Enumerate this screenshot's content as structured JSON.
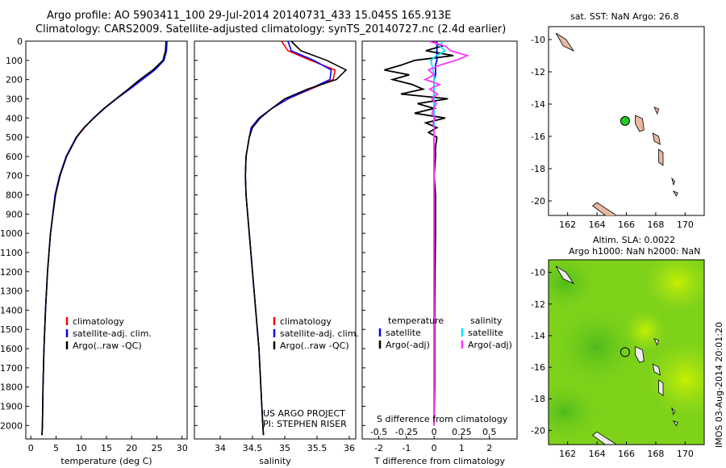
{
  "header": {
    "line1": "Argo profile: AO 5903411_100 29-Jul-2014 20140731_433 15.045S 165.913E",
    "line2": "Climatology: CARS2009. Satellite-adjusted climatology: synTS_20140727.nc (2.4d earlier)"
  },
  "map_top": {
    "title": "sat. SST: NaN Argo: 26.8"
  },
  "map_bottom": {
    "title1": "Altim. SLA: 0.0022",
    "title2": "Argo h1000: NaN h2000: NaN"
  },
  "side_stamp": "IMOS 03-Aug-2014 20:01:20",
  "panel2_note": {
    "line1": "US ARGO PROJECT",
    "line2": "PI: STEPHEN RISER"
  },
  "panel3_top_label": "S difference from climatology",
  "colors": {
    "climatology": "#ff0000",
    "satellite": "#0000ff",
    "argo": "#000000",
    "s_satellite": "#00e5ff",
    "s_argo": "#ff33ff",
    "argo_dot": "#22cc22",
    "land": "#e8b8a0"
  },
  "chart_data": [
    {
      "type": "line",
      "name": "temperature",
      "xlabel": "temperature (deg C)",
      "ylabel": "",
      "xlim": [
        -1,
        31
      ],
      "ylim": [
        2070,
        0
      ],
      "xticks": [
        "0",
        "5",
        "10",
        "15",
        "20",
        "25",
        "30"
      ],
      "yticks": [
        "0",
        "100",
        "200",
        "300",
        "400",
        "500",
        "600",
        "700",
        "800",
        "900",
        "1000",
        "1100",
        "1200",
        "1300",
        "1400",
        "1500",
        "1600",
        "1700",
        "1800",
        "1900",
        "2000"
      ],
      "legend": [
        "climatology",
        "satellite-adj. clim.",
        "Argo(..raw -QC)"
      ],
      "depth": [
        0,
        50,
        100,
        150,
        200,
        250,
        300,
        350,
        400,
        450,
        500,
        600,
        700,
        800,
        1000,
        1200,
        1400,
        1600,
        1800,
        2000,
        2050
      ],
      "series": [
        {
          "name": "climatology",
          "values": [
            26.9,
            26.8,
            26.3,
            24.5,
            22.0,
            19.5,
            17.0,
            14.5,
            12.5,
            10.5,
            9.0,
            7.0,
            5.7,
            4.8,
            3.9,
            3.3,
            2.9,
            2.6,
            2.4,
            2.3,
            2.2
          ]
        },
        {
          "name": "satellite-adj. clim.",
          "values": [
            27.0,
            26.9,
            26.4,
            24.6,
            22.1,
            19.6,
            17.0,
            14.6,
            12.5,
            10.6,
            9.0,
            7.0,
            5.7,
            4.8,
            3.9,
            3.3,
            2.9,
            2.6,
            2.4,
            2.3,
            2.2
          ]
        },
        {
          "name": "Argo(..raw -QC)",
          "values": [
            26.8,
            26.7,
            26.2,
            24.2,
            21.6,
            19.3,
            16.9,
            14.5,
            12.4,
            10.6,
            9.1,
            7.1,
            5.8,
            4.9,
            3.9,
            3.3,
            2.9,
            2.6,
            2.4,
            2.3,
            2.2
          ]
        }
      ]
    },
    {
      "type": "line",
      "name": "salinity",
      "xlabel": "salinity",
      "xlim": [
        33.6,
        36.1
      ],
      "xticks": [
        "34",
        "34.5",
        "35",
        "35.5",
        "36"
      ],
      "legend": [
        "climatology",
        "satellite-adj. clim.",
        "Argo(..raw -QC)"
      ],
      "depth": [
        0,
        50,
        100,
        150,
        200,
        250,
        300,
        350,
        400,
        450,
        500,
        600,
        700,
        800,
        1000,
        1200,
        1400,
        1600,
        1800,
        2000,
        2050
      ],
      "series": [
        {
          "name": "climatology",
          "values": [
            34.95,
            35.05,
            35.4,
            35.78,
            35.75,
            35.4,
            35.05,
            34.8,
            34.6,
            34.48,
            34.45,
            34.4,
            34.39,
            34.4,
            34.45,
            34.5,
            34.55,
            34.6,
            34.63,
            34.66,
            34.67
          ]
        },
        {
          "name": "satellite-adj. clim.",
          "values": [
            35.05,
            35.1,
            35.45,
            35.72,
            35.7,
            35.38,
            35.05,
            34.8,
            34.6,
            34.48,
            34.45,
            34.4,
            34.39,
            34.4,
            34.45,
            34.5,
            34.55,
            34.6,
            34.63,
            34.66,
            34.67
          ]
        },
        {
          "name": "Argo(..raw -QC)",
          "values": [
            35.1,
            35.25,
            35.65,
            35.95,
            35.8,
            35.35,
            35.0,
            34.8,
            34.62,
            34.5,
            34.45,
            34.4,
            34.39,
            34.4,
            34.45,
            34.5,
            34.55,
            34.6,
            34.63,
            34.66,
            34.67
          ]
        }
      ]
    },
    {
      "type": "line",
      "name": "difference",
      "xlabel": "T difference from climatology",
      "x2label": "S difference from climatology",
      "xlim": [
        -2.6,
        3.0
      ],
      "x2lim": [
        -0.65,
        0.75
      ],
      "xticks": [
        "-2",
        "-1",
        "0",
        "1",
        "2"
      ],
      "x2ticks": [
        "-0.5",
        "-0.25",
        "0",
        "0.25",
        "0.5"
      ],
      "legend_titles": [
        "temperature",
        "salinity"
      ],
      "legend": [
        "satellite",
        "Argo(-adj)",
        "satellite",
        "Argo(-adj)"
      ],
      "depth": [
        0,
        25,
        50,
        75,
        100,
        125,
        150,
        175,
        200,
        225,
        250,
        275,
        300,
        325,
        350,
        375,
        400,
        425,
        450,
        475,
        500,
        550,
        600,
        700,
        800,
        1000,
        1200,
        1400,
        1600,
        1800,
        2000
      ],
      "series": [
        {
          "name": "temperature satellite",
          "values": [
            0.1,
            0.1,
            0.1,
            0.1,
            0.1,
            0.05,
            0.05,
            0.05,
            0,
            0,
            0,
            0,
            0,
            0,
            0,
            0,
            0,
            0,
            0,
            0,
            0,
            0,
            0,
            0,
            0,
            0,
            0,
            0,
            0,
            0,
            0
          ]
        },
        {
          "name": "temperature Argo(-adj)",
          "values": [
            -0.1,
            0.3,
            -0.3,
            0.7,
            -0.7,
            -1.2,
            -1.8,
            -0.9,
            -1.5,
            -0.8,
            -0.4,
            -1.2,
            0.5,
            -0.6,
            0,
            -0.7,
            0.4,
            -0.3,
            0.1,
            -0.2,
            0.1,
            0.05,
            0.05,
            0,
            0.05,
            0.05,
            0.03,
            0.02,
            0.02,
            0.02,
            0
          ]
        },
        {
          "name": "salinity satellite",
          "values": [
            0.08,
            0.05,
            0.1,
            0.02,
            -0.03,
            -0.02,
            -0.01,
            0,
            0,
            0,
            0,
            0,
            0,
            0,
            0,
            0,
            0,
            0,
            0,
            0,
            0,
            0,
            0,
            0,
            0,
            0,
            0,
            0,
            0,
            0,
            0
          ]
        },
        {
          "name": "salinity Argo(-adj)",
          "values": [
            -0.05,
            0.1,
            0.15,
            0.3,
            0.2,
            0.05,
            -0.05,
            0,
            -0.08,
            0.05,
            -0.04,
            0.03,
            -0.02,
            0.02,
            0,
            -0.02,
            0.01,
            -0.01,
            0,
            0,
            0,
            0,
            0,
            0,
            0,
            0,
            0,
            0,
            0,
            0,
            0
          ]
        }
      ]
    },
    {
      "type": "scatter",
      "name": "map-sst",
      "xticks": [
        "162",
        "164",
        "166",
        "168",
        "170"
      ],
      "yticks": [
        "-10",
        "-12",
        "-14",
        "-16",
        "-18",
        "-20"
      ],
      "xlim": [
        160.7,
        171.3
      ],
      "ylim": [
        -20.9,
        -9.2
      ],
      "x": [
        165.913
      ],
      "y": [
        -15.045
      ]
    },
    {
      "type": "heatmap",
      "name": "map-sla",
      "xticks": [
        "162",
        "164",
        "166",
        "168",
        "170"
      ],
      "yticks": [
        "-10",
        "-12",
        "-14",
        "-16",
        "-18",
        "-20"
      ],
      "xlim": [
        160.7,
        171.3
      ],
      "ylim": [
        -20.9,
        -9.2
      ],
      "x": [
        165.913
      ],
      "y": [
        -15.045
      ]
    }
  ]
}
